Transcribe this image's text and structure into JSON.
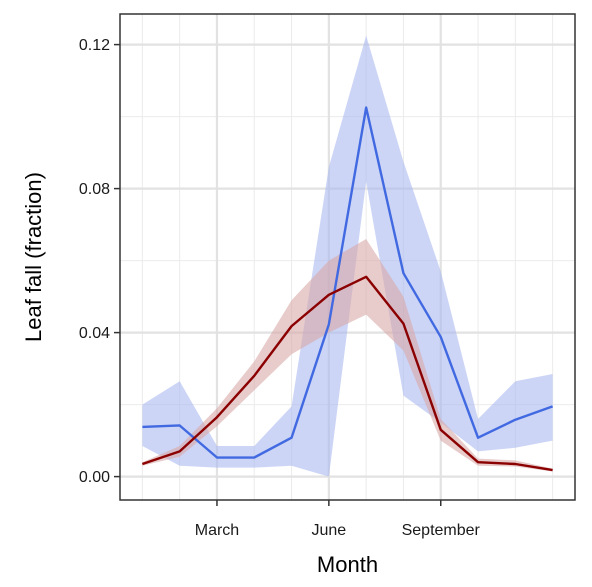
{
  "chart_data": {
    "type": "line",
    "xlabel": "Month",
    "ylabel": "Leaf fall (fraction)",
    "x": [
      1,
      2,
      3,
      4,
      5,
      6,
      7,
      8,
      9,
      10,
      11,
      12
    ],
    "xlim": [
      0.4,
      12.6
    ],
    "ylim": [
      -0.0065,
      0.1285
    ],
    "x_ticks": [
      {
        "value": 3,
        "label": "March"
      },
      {
        "value": 6,
        "label": "June"
      },
      {
        "value": 9,
        "label": "September"
      }
    ],
    "y_ticks": [
      {
        "value": 0.0,
        "label": "0.00"
      },
      {
        "value": 0.04,
        "label": "0.04"
      },
      {
        "value": 0.08,
        "label": "0.08"
      },
      {
        "value": 0.12,
        "label": "0.12"
      }
    ],
    "grid": true,
    "legend": false,
    "series": [
      {
        "color": "#4169e1",
        "band_color": "#aab9f0",
        "values": [
          0.0138,
          0.0142,
          0.0053,
          0.0053,
          0.0108,
          0.0423,
          0.1025,
          0.0565,
          0.0388,
          0.0108,
          0.0158,
          0.0195
        ],
        "lower": [
          0.0085,
          0.003,
          0.0025,
          0.0025,
          0.003,
          0.0,
          0.082,
          0.0225,
          0.015,
          0.007,
          0.008,
          0.01
        ],
        "upper": [
          0.02,
          0.0265,
          0.0085,
          0.0085,
          0.0195,
          0.086,
          0.1225,
          0.0875,
          0.057,
          0.016,
          0.0265,
          0.0285
        ]
      },
      {
        "color": "#8b0000",
        "band_color": "#d9a8a8",
        "values": [
          0.0035,
          0.007,
          0.0165,
          0.028,
          0.0418,
          0.0505,
          0.0555,
          0.0425,
          0.013,
          0.004,
          0.0035,
          0.0018
        ],
        "lower": [
          0.003,
          0.0055,
          0.014,
          0.024,
          0.034,
          0.04,
          0.045,
          0.035,
          0.01,
          0.003,
          0.0028,
          0.0014
        ],
        "upper": [
          0.004,
          0.0085,
          0.019,
          0.032,
          0.049,
          0.06,
          0.066,
          0.05,
          0.016,
          0.005,
          0.0045,
          0.0022
        ]
      }
    ]
  }
}
